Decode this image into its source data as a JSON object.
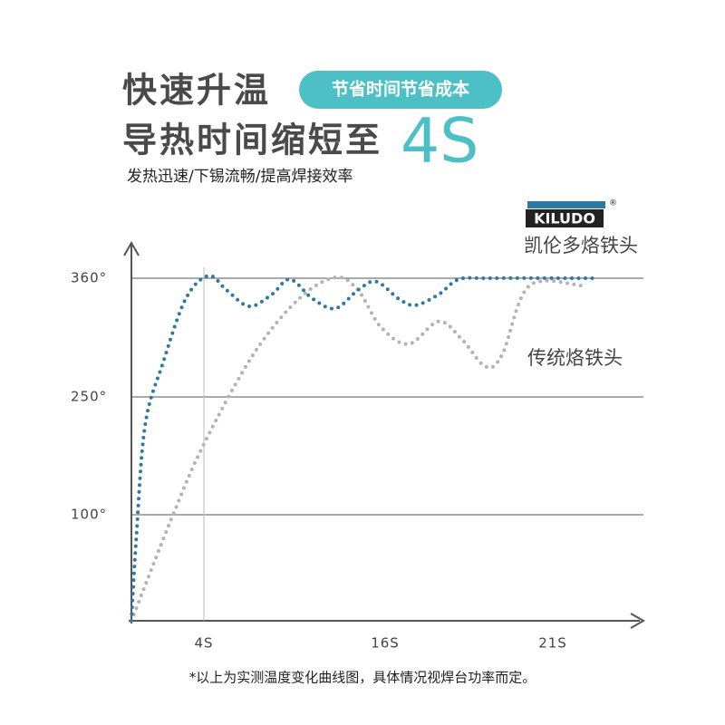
{
  "chart_data": {
    "type": "line",
    "title_lines": [
      "快速升温",
      "导热时间缩短至"
    ],
    "highlight": "4S",
    "badge": "节省时间节省成本",
    "subtitle": "发热迅速/下锡流畅/提高焊接效率",
    "brand": "KILUDO",
    "registered": "®",
    "note": "*以上为实测温度变化曲线图，具体情况视焊台功率而定。",
    "xlim": [
      0,
      24
    ],
    "xticks": [
      {
        "value": 4,
        "label": "4S"
      },
      {
        "value": 16,
        "label": "16S"
      },
      {
        "value": 21,
        "label": "21S"
      }
    ],
    "ylim": [
      0,
      400
    ],
    "yticks": [
      {
        "value": 100,
        "label": "100°"
      },
      {
        "value": 250,
        "label": "250°"
      },
      {
        "value": 360,
        "label": "360°"
      }
    ],
    "grid": true,
    "series": [
      {
        "name": "凯伦多烙铁头",
        "color": "#2e78a4",
        "x": [
          0,
          0.25,
          0.75,
          1.75,
          3,
          4.3,
          5.5,
          7,
          8.5,
          9.7,
          11.2,
          12.7,
          14.2,
          15.4,
          16.4,
          16.9,
          17.6,
          18.2,
          19.1,
          22.6
        ],
        "values": [
          0,
          73,
          213,
          282,
          341,
          363,
          349,
          334,
          345,
          359,
          341,
          332,
          349,
          357,
          341,
          335,
          345,
          359,
          360,
          360
        ]
      },
      {
        "name": "传统烙铁头",
        "color": "#b3b3b3",
        "x": [
          0,
          2.25,
          4,
          7.3,
          10.3,
          12.7,
          14.2,
          15.7,
          16.7,
          17.6,
          18.3,
          19,
          19.5,
          20.3,
          22.1
        ],
        "values": [
          0,
          98,
          190,
          290,
          341,
          361,
          349,
          315,
          299,
          320,
          303,
          278,
          290,
          353,
          353
        ]
      }
    ]
  }
}
